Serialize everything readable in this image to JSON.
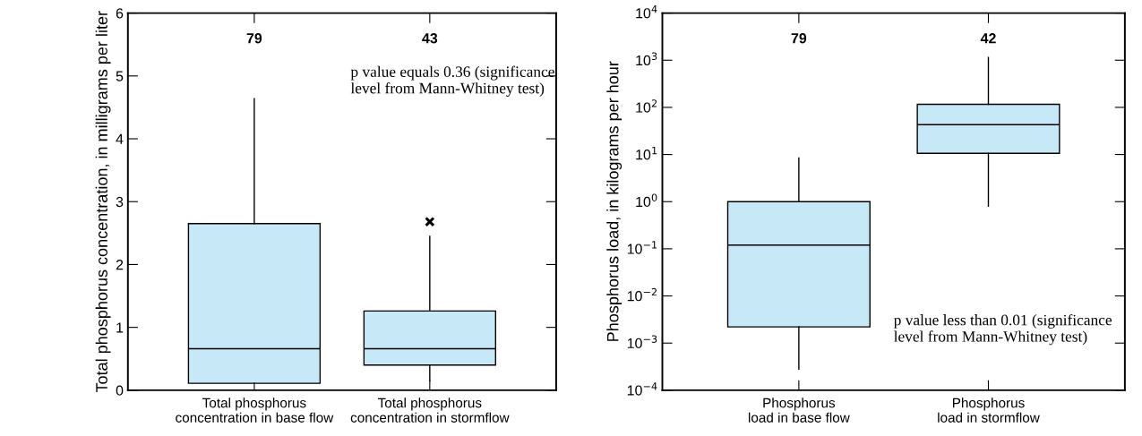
{
  "chart_data": [
    {
      "type": "box",
      "ylabel": "Total phosphorus concentration, in milligrams per liter",
      "categories": [
        "Total phosphorus\nconcentration in base flow",
        "Total phosphorus\nconcentration in stormflow"
      ],
      "color": "#c6e8f7",
      "boxes": [
        {
          "low": 0.11,
          "q1": 0.11,
          "median": 0.66,
          "q3": 2.65,
          "high": 4.64
        },
        {
          "low": 0.15,
          "q1": 0.4,
          "median": 0.66,
          "q3": 1.26,
          "high": 2.45,
          "outliers": [
            2.68
          ]
        }
      ],
      "ylim": [
        0,
        6
      ],
      "yticks": [
        0,
        1,
        2,
        3,
        4,
        5,
        6
      ],
      "grid": false,
      "annotations": [
        "79",
        "43",
        "p value equals 0.36 (significance\nlevel from Mann-Whitney test)"
      ]
    },
    {
      "type": "box",
      "ylabel": "Phosphorus load, in kilograms per hour",
      "categories": [
        "Phosphorus\nload in base flow",
        "Phosphorus\nload in stormflow"
      ],
      "color": "#c6e8f7",
      "log": "y",
      "boxes": [
        {
          "low": 0.00028,
          "q1": 0.0022,
          "median": 0.12,
          "q3": 1.0,
          "high": 8.4
        },
        {
          "low": 0.8,
          "q1": 10.6,
          "median": 43,
          "q3": 116,
          "high": 1150
        }
      ],
      "ylim": [
        0.0001,
        10000
      ],
      "yticks": [
        {
          "value": 0.0001,
          "label": "10$^{−4}$"
        },
        {
          "value": 0.001,
          "label": "10$^{−3}$"
        },
        {
          "value": 0.01,
          "label": "10$^{−2}$"
        },
        {
          "value": 0.1,
          "label": "10$^{−1}$"
        },
        {
          "value": 1,
          "label": "10$^{0}$"
        },
        {
          "value": 10,
          "label": "10$^{1}$"
        },
        {
          "value": 100,
          "label": "10$^{2}$"
        },
        {
          "value": 1000,
          "label": "10$^{3}$"
        },
        {
          "value": 10000,
          "label": "10$^{4}$"
        }
      ],
      "grid": false,
      "annotations": [
        "79",
        "42",
        "p value less than 0.01 (significance\nlevel from Mann-Whitney test)"
      ]
    }
  ]
}
